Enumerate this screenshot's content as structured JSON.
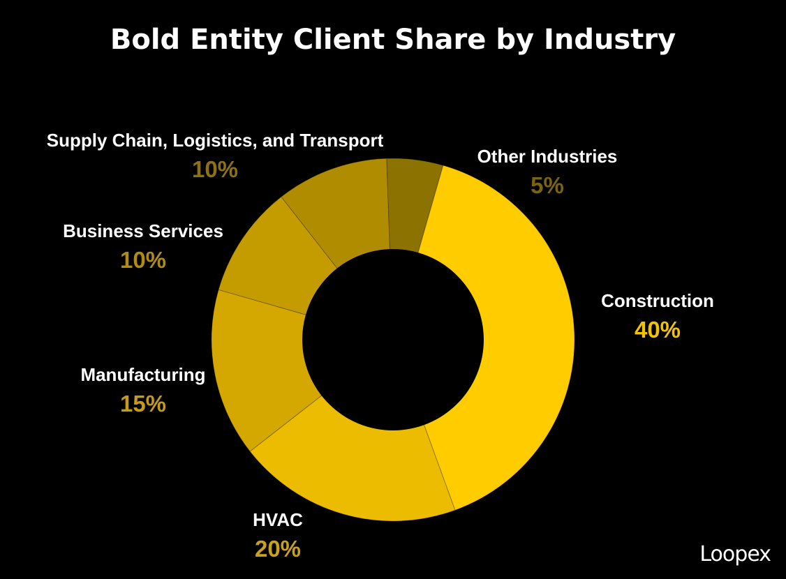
{
  "chart_data": {
    "type": "pie",
    "title": "Bold Entity Client Share by Industry",
    "categories": [
      "Construction",
      "HVAC",
      "Manufacturing",
      "Business Services",
      "Supply Chain, Logistics, and Transport",
      "Other Industries"
    ],
    "values": [
      40,
      20,
      15,
      10,
      10,
      5
    ],
    "value_labels": [
      "40%",
      "20%",
      "15%",
      "10%",
      "10%",
      "5%"
    ],
    "colors": [
      "#FFCC00",
      "#EBBC00",
      "#D4A800",
      "#C49C00",
      "#B08D00",
      "#8C7200"
    ],
    "label_colors": [
      "#F2C300",
      "#C9A21A",
      "#C49C18",
      "#B08C16",
      "#8E7210",
      "#7A6410"
    ]
  },
  "logo": {
    "text": "Loopex"
  }
}
